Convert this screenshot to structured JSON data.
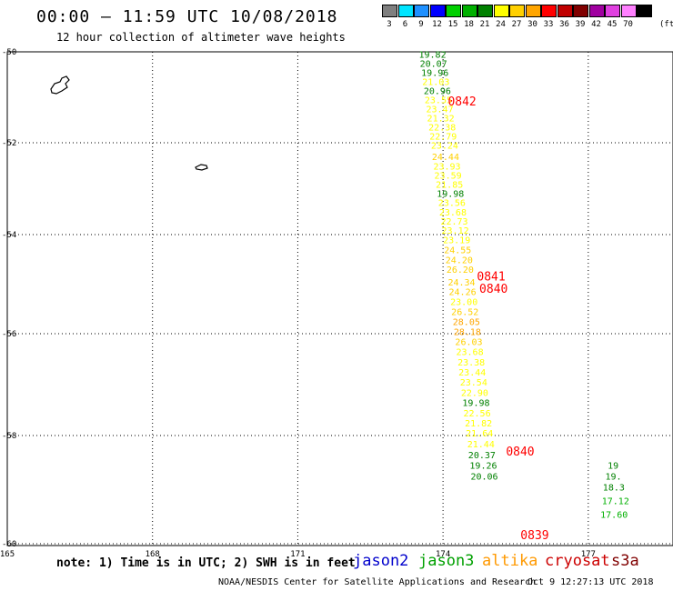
{
  "header": {
    "title": "00:00 — 11:59 UTC 10/08/2018",
    "subtitle": "12 hour collection of altimeter wave heights"
  },
  "legend": {
    "unit": "(ft)",
    "colors": [
      {
        "label": "3",
        "color": "#7f7f7f"
      },
      {
        "label": "6",
        "color": "#00e5ff"
      },
      {
        "label": "9",
        "color": "#1e90ff"
      },
      {
        "label": "12",
        "color": "#0000ff"
      },
      {
        "label": "15",
        "color": "#00d000"
      },
      {
        "label": "18",
        "color": "#00b000"
      },
      {
        "label": "21",
        "color": "#008000"
      },
      {
        "label": "24",
        "color": "#ffff00"
      },
      {
        "label": "27",
        "color": "#ffd000"
      },
      {
        "label": "30",
        "color": "#ffa500"
      },
      {
        "label": "33",
        "color": "#ff0000"
      },
      {
        "label": "36",
        "color": "#c00000"
      },
      {
        "label": "39",
        "color": "#800000"
      },
      {
        "label": "42",
        "color": "#a000a0"
      },
      {
        "label": "45",
        "color": "#e040e0"
      },
      {
        "label": "70",
        "color": "#ff80ff"
      },
      {
        "label": "",
        "color": "#000000"
      }
    ]
  },
  "map": {
    "lat_ticks": [
      "-50",
      "-52",
      "-54",
      "-56",
      "-58",
      "-60"
    ],
    "lon_ticks": [
      "165",
      "168",
      "171",
      "174",
      "177"
    ],
    "track_times": [
      {
        "label": "0842",
        "lat": -51.1,
        "lon": 174.1
      },
      {
        "label": "0841",
        "lat": -54.85,
        "lon": 174.7
      },
      {
        "label": "0840",
        "lat": -55.1,
        "lon": 174.75
      },
      {
        "label": "0840",
        "lat": -58.3,
        "lon": 175.3
      },
      {
        "label": "0839",
        "lat": -59.85,
        "lon": 175.6
      }
    ],
    "swh_values": [
      {
        "v": "19.82",
        "lat": -50.05,
        "lon": 173.5
      },
      {
        "v": "20.07",
        "lat": -50.25,
        "lon": 173.52
      },
      {
        "v": "19.96",
        "lat": -50.45,
        "lon": 173.55
      },
      {
        "v": "21.03",
        "lat": -50.65,
        "lon": 173.57
      },
      {
        "v": "20.96",
        "lat": -50.85,
        "lon": 173.6
      },
      {
        "v": "23.55",
        "lat": -51.05,
        "lon": 173.62
      },
      {
        "v": "23.47",
        "lat": -51.25,
        "lon": 173.65
      },
      {
        "v": "21.32",
        "lat": -51.45,
        "lon": 173.67
      },
      {
        "v": "22.38",
        "lat": -51.65,
        "lon": 173.7
      },
      {
        "v": "22.79",
        "lat": -51.85,
        "lon": 173.72
      },
      {
        "v": "23.24",
        "lat": -52.05,
        "lon": 173.75
      },
      {
        "v": "24.44",
        "lat": -52.3,
        "lon": 173.77
      },
      {
        "v": "23.93",
        "lat": -52.5,
        "lon": 173.8
      },
      {
        "v": "23.59",
        "lat": -52.7,
        "lon": 173.82
      },
      {
        "v": "21.85",
        "lat": -52.9,
        "lon": 173.85
      },
      {
        "v": "19.98",
        "lat": -53.1,
        "lon": 173.87
      },
      {
        "v": "23.56",
        "lat": -53.3,
        "lon": 173.9
      },
      {
        "v": "23.68",
        "lat": -53.5,
        "lon": 173.92
      },
      {
        "v": "22.73",
        "lat": -53.7,
        "lon": 173.95
      },
      {
        "v": "23.12",
        "lat": -53.9,
        "lon": 173.97
      },
      {
        "v": "23.19",
        "lat": -54.1,
        "lon": 174.0
      },
      {
        "v": "24.55",
        "lat": -54.3,
        "lon": 174.02
      },
      {
        "v": "24.20",
        "lat": -54.5,
        "lon": 174.05
      },
      {
        "v": "26.20",
        "lat": -54.7,
        "lon": 174.07
      },
      {
        "v": "24.34",
        "lat": -54.95,
        "lon": 174.1
      },
      {
        "v": "24.26",
        "lat": -55.15,
        "lon": 174.12
      },
      {
        "v": "23.00",
        "lat": -55.35,
        "lon": 174.15
      },
      {
        "v": "26.52",
        "lat": -55.55,
        "lon": 174.17
      },
      {
        "v": "28.05",
        "lat": -55.75,
        "lon": 174.2
      },
      {
        "v": "28.18",
        "lat": -55.95,
        "lon": 174.22
      },
      {
        "v": "26.03",
        "lat": -56.15,
        "lon": 174.25
      },
      {
        "v": "23.68",
        "lat": -56.35,
        "lon": 174.27
      },
      {
        "v": "23.38",
        "lat": -56.55,
        "lon": 174.3
      },
      {
        "v": "23.44",
        "lat": -56.75,
        "lon": 174.32
      },
      {
        "v": "23.54",
        "lat": -56.95,
        "lon": 174.35
      },
      {
        "v": "22.90",
        "lat": -57.15,
        "lon": 174.37
      },
      {
        "v": "19.98",
        "lat": -57.35,
        "lon": 174.4
      },
      {
        "v": "22.56",
        "lat": -57.55,
        "lon": 174.42
      },
      {
        "v": "21.82",
        "lat": -57.75,
        "lon": 174.45
      },
      {
        "v": "21.64",
        "lat": -57.95,
        "lon": 174.47
      },
      {
        "v": "21.44",
        "lat": -58.15,
        "lon": 174.5
      },
      {
        "v": "20.37",
        "lat": -58.35,
        "lon": 174.52
      },
      {
        "v": "19.26",
        "lat": -58.55,
        "lon": 174.55
      },
      {
        "v": "20.06",
        "lat": -58.75,
        "lon": 174.57
      }
    ],
    "right_values": [
      {
        "v": "19",
        "lat": -58.55,
        "lon": 177.4
      },
      {
        "v": "19.",
        "lat": -58.75,
        "lon": 177.35
      },
      {
        "v": "18.3",
        "lat": -58.95,
        "lon": 177.3
      },
      {
        "v": "17.12",
        "lat": -59.2,
        "lon": 177.28
      },
      {
        "v": "17.60",
        "lat": -59.45,
        "lon": 177.25
      }
    ]
  },
  "footer": {
    "note": "note: 1) Time is in UTC; 2) SWH is in feet",
    "satellites": [
      {
        "name": "jason2",
        "color": "#0000cc"
      },
      {
        "name": "jason3",
        "color": "#00a000"
      },
      {
        "name": "altika",
        "color": "#ff9900"
      },
      {
        "name": "cryosat",
        "color": "#cc0000"
      },
      {
        "name": "s3a",
        "color": "#800000"
      }
    ],
    "credit": "NOAA/NESDIS Center for Satellite Applications and Research",
    "timestamp": "Oct  9 12:27:13 UTC 2018"
  }
}
